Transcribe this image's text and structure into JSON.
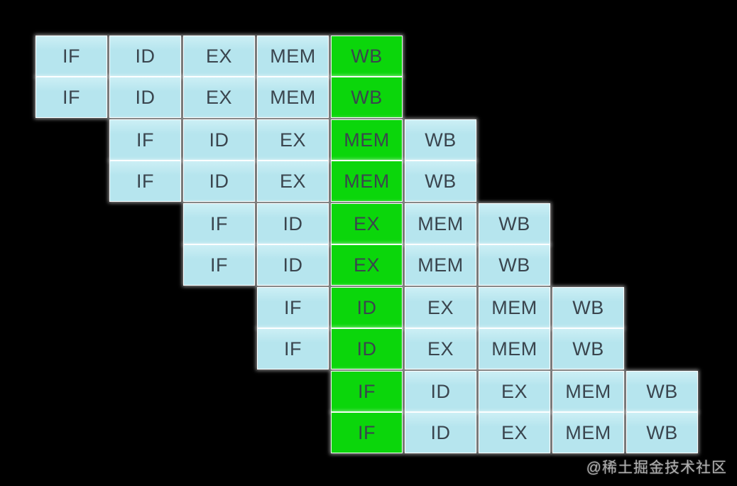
{
  "colors": {
    "background": "#000000",
    "cell_blue": "#b6e5ee",
    "cell_blue_light": "#cceff5",
    "cell_green": "#0bd60b",
    "cell_text": "#3a454e",
    "watermark_text": "#b0b0b0"
  },
  "pipeline": {
    "stages": [
      "IF",
      "ID",
      "EX",
      "MEM",
      "WB"
    ],
    "highlighted_stage_by_group": [
      "WB",
      "MEM",
      "EX",
      "ID",
      "IF"
    ],
    "rows": [
      {
        "cells": [
          {
            "label": "IF",
            "state": "normal"
          },
          {
            "label": "ID",
            "state": "normal"
          },
          {
            "label": "EX",
            "state": "normal"
          },
          {
            "label": "MEM",
            "state": "normal"
          },
          {
            "label": "WB",
            "state": "active"
          }
        ]
      },
      {
        "cells": [
          {
            "label": "IF",
            "state": "normal"
          },
          {
            "label": "ID",
            "state": "normal"
          },
          {
            "label": "EX",
            "state": "normal"
          },
          {
            "label": "MEM",
            "state": "normal"
          },
          {
            "label": "WB",
            "state": "active"
          }
        ]
      },
      {
        "cells": [
          {
            "label": "IF",
            "state": "normal"
          },
          {
            "label": "ID",
            "state": "normal"
          },
          {
            "label": "EX",
            "state": "normal"
          },
          {
            "label": "MEM",
            "state": "active"
          },
          {
            "label": "WB",
            "state": "normal"
          }
        ]
      },
      {
        "cells": [
          {
            "label": "IF",
            "state": "normal"
          },
          {
            "label": "ID",
            "state": "normal"
          },
          {
            "label": "EX",
            "state": "normal"
          },
          {
            "label": "MEM",
            "state": "active"
          },
          {
            "label": "WB",
            "state": "normal"
          }
        ]
      },
      {
        "cells": [
          {
            "label": "IF",
            "state": "normal"
          },
          {
            "label": "ID",
            "state": "normal"
          },
          {
            "label": "EX",
            "state": "active"
          },
          {
            "label": "MEM",
            "state": "normal"
          },
          {
            "label": "WB",
            "state": "normal"
          }
        ]
      },
      {
        "cells": [
          {
            "label": "IF",
            "state": "normal"
          },
          {
            "label": "ID",
            "state": "normal"
          },
          {
            "label": "EX",
            "state": "active"
          },
          {
            "label": "MEM",
            "state": "normal"
          },
          {
            "label": "WB",
            "state": "normal"
          }
        ]
      },
      {
        "cells": [
          {
            "label": "IF",
            "state": "normal"
          },
          {
            "label": "ID",
            "state": "active"
          },
          {
            "label": "EX",
            "state": "normal"
          },
          {
            "label": "MEM",
            "state": "normal"
          },
          {
            "label": "WB",
            "state": "normal"
          }
        ]
      },
      {
        "cells": [
          {
            "label": "IF",
            "state": "normal"
          },
          {
            "label": "ID",
            "state": "active"
          },
          {
            "label": "EX",
            "state": "normal"
          },
          {
            "label": "MEM",
            "state": "normal"
          },
          {
            "label": "WB",
            "state": "normal"
          }
        ]
      },
      {
        "cells": [
          {
            "label": "IF",
            "state": "active"
          },
          {
            "label": "ID",
            "state": "normal"
          },
          {
            "label": "EX",
            "state": "normal"
          },
          {
            "label": "MEM",
            "state": "normal"
          },
          {
            "label": "WB",
            "state": "normal"
          }
        ]
      },
      {
        "cells": [
          {
            "label": "IF",
            "state": "active"
          },
          {
            "label": "ID",
            "state": "normal"
          },
          {
            "label": "EX",
            "state": "normal"
          },
          {
            "label": "MEM",
            "state": "normal"
          },
          {
            "label": "WB",
            "state": "normal"
          }
        ]
      }
    ]
  },
  "watermark": {
    "label": "@稀土掘金技术社区"
  }
}
